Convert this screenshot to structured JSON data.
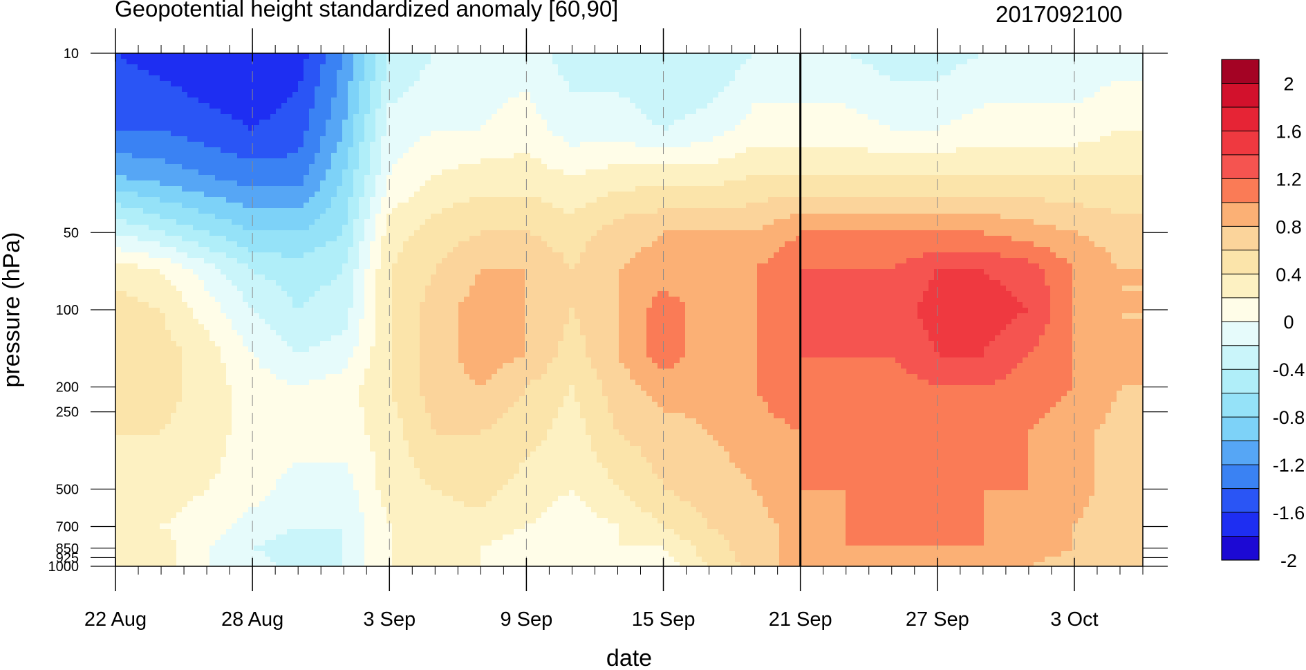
{
  "chart_data": {
    "type": "heatmap",
    "subtype": "filled-contour (time-pressure cross section)",
    "title": "Geopotential height standardized anomaly [60,90]",
    "subtitle": "2017092100",
    "xlabel": "date",
    "ylabel": "pressure (hPa)",
    "x_range": [
      "2017-08-22",
      "2017-10-06"
    ],
    "x_tick_labels": [
      "22 Aug",
      "28 Aug",
      "3 Sep",
      "9 Sep",
      "15 Sep",
      "21 Sep",
      "27 Sep",
      "3 Oct"
    ],
    "x_tick_dates": [
      "2017-08-22",
      "2017-08-28",
      "2017-09-03",
      "2017-09-09",
      "2017-09-15",
      "2017-09-21",
      "2017-09-27",
      "2017-10-03"
    ],
    "y_scale": "log",
    "y_range": [
      1000,
      10
    ],
    "y_tick_labels": [
      "10",
      "50",
      "100",
      "200",
      "250",
      "500",
      "700",
      "850",
      "925",
      "1000"
    ],
    "y_tick_values": [
      10,
      50,
      100,
      200,
      250,
      500,
      700,
      850,
      925,
      1000
    ],
    "reference_line_date": "2017-09-21",
    "grid": "dashed vertical lines at labeled dates",
    "colorbar": {
      "placement": "right",
      "labels": [
        "2",
        "1.6",
        "1.2",
        "0.8",
        "0.4",
        "0",
        "-0.4",
        "-0.8",
        "-1.2",
        "-1.6",
        "-2"
      ],
      "levels": [
        -2,
        -1.8,
        -1.6,
        -1.4,
        -1.2,
        -1.0,
        -0.8,
        -0.6,
        -0.4,
        -0.2,
        0,
        0.2,
        0.4,
        0.6,
        0.8,
        1.0,
        1.2,
        1.4,
        1.6,
        1.8,
        2
      ],
      "colors_low_to_high": [
        "#1c09d4",
        "#1e2ef2",
        "#2a55f5",
        "#3a82f3",
        "#56a6f5",
        "#7dd2f8",
        "#95e2f8",
        "#b0eef9",
        "#caf5fa",
        "#e6fbfb",
        "#fffde8",
        "#fdf1c2",
        "#fbe4aa",
        "#fbd49b",
        "#fbb075",
        "#fa7b56",
        "#f55450",
        "#ef3940",
        "#e62435",
        "#d2112c",
        "#a40324"
      ]
    },
    "dates": [
      "08-22",
      "08-24",
      "08-26",
      "08-28",
      "08-30",
      "09-01",
      "09-03",
      "09-05",
      "09-07",
      "09-09",
      "09-11",
      "09-13",
      "09-15",
      "09-17",
      "09-19",
      "09-21",
      "09-23",
      "09-25",
      "09-27",
      "09-29",
      "10-01",
      "10-03",
      "10-05"
    ],
    "pressure_levels": [
      10,
      20,
      30,
      50,
      70,
      100,
      150,
      200,
      300,
      500,
      700,
      850,
      1000
    ],
    "values_by_level": [
      [
        -1.8,
        -1.9,
        -2.0,
        -2.0,
        -1.9,
        -1.4,
        -0.6,
        -0.4,
        -0.3,
        -0.3,
        -0.5,
        -0.5,
        -0.6,
        -0.6,
        -0.4,
        -0.4,
        -0.4,
        -0.5,
        -0.5,
        -0.4,
        -0.4,
        -0.4,
        -0.3
      ],
      [
        -1.6,
        -1.6,
        -1.7,
        -1.8,
        -1.7,
        -1.2,
        -0.3,
        -0.2,
        -0.2,
        -0.1,
        -0.3,
        -0.3,
        -0.4,
        -0.3,
        -0.1,
        -0.1,
        -0.1,
        -0.2,
        -0.2,
        -0.1,
        -0.1,
        -0.1,
        0.0
      ],
      [
        -1.2,
        -1.3,
        -1.4,
        -1.5,
        -1.5,
        -1.0,
        -0.2,
        0.0,
        0.1,
        0.1,
        0.0,
        0.1,
        0.1,
        0.1,
        0.2,
        0.2,
        0.2,
        0.2,
        0.2,
        0.2,
        0.2,
        0.2,
        0.2
      ],
      [
        -0.4,
        -0.6,
        -0.8,
        -1.0,
        -1.0,
        -0.8,
        0.1,
        0.3,
        0.4,
        0.4,
        0.3,
        0.5,
        0.6,
        0.6,
        0.6,
        0.8,
        0.8,
        0.8,
        0.8,
        0.8,
        0.7,
        0.6,
        0.5
      ],
      [
        0.1,
        0.0,
        -0.3,
        -0.6,
        -0.7,
        -0.6,
        0.2,
        0.4,
        0.6,
        0.6,
        0.4,
        0.6,
        0.7,
        0.7,
        0.8,
        1.0,
        1.0,
        1.0,
        1.2,
        1.2,
        1.1,
        0.8,
        0.6
      ],
      [
        0.3,
        0.2,
        -0.1,
        -0.4,
        -0.6,
        -0.5,
        0.2,
        0.5,
        0.7,
        0.6,
        0.4,
        0.6,
        0.9,
        0.7,
        0.8,
        1.0,
        1.0,
        1.1,
        1.3,
        1.3,
        1.2,
        0.8,
        0.6
      ],
      [
        0.3,
        0.3,
        0.1,
        -0.2,
        -0.4,
        -0.3,
        0.2,
        0.5,
        0.7,
        0.6,
        0.3,
        0.6,
        0.9,
        0.7,
        0.8,
        1.0,
        1.0,
        1.0,
        1.2,
        1.2,
        1.0,
        0.8,
        0.6
      ],
      [
        0.3,
        0.3,
        0.1,
        -0.1,
        -0.2,
        -0.1,
        0.2,
        0.5,
        0.6,
        0.4,
        0.2,
        0.5,
        0.7,
        0.7,
        0.8,
        1.0,
        0.8,
        0.9,
        1.0,
        1.0,
        0.9,
        0.8,
        0.6
      ],
      [
        0.2,
        0.2,
        0.1,
        -0.1,
        -0.1,
        -0.1,
        0.1,
        0.4,
        0.4,
        0.3,
        0.1,
        0.4,
        0.5,
        0.6,
        0.7,
        0.8,
        0.8,
        0.9,
        0.9,
        0.9,
        0.8,
        0.7,
        0.5
      ],
      [
        0.0,
        0.1,
        0.0,
        -0.1,
        -0.3,
        -0.3,
        0.1,
        0.2,
        0.3,
        0.1,
        0.0,
        0.2,
        0.4,
        0.5,
        0.6,
        0.8,
        0.8,
        0.8,
        0.9,
        0.8,
        0.8,
        0.7,
        0.5
      ],
      [
        0.1,
        0.0,
        -0.1,
        -0.3,
        -0.4,
        -0.4,
        0.0,
        0.1,
        0.1,
        0.0,
        -0.1,
        0.0,
        0.2,
        0.4,
        0.5,
        0.7,
        0.8,
        0.8,
        0.9,
        0.8,
        0.7,
        0.6,
        0.4
      ],
      [
        0.1,
        0.1,
        -0.2,
        -0.4,
        -0.5,
        -0.4,
        0.0,
        0.0,
        0.0,
        -0.1,
        -0.1,
        0.0,
        0.0,
        0.3,
        0.5,
        0.7,
        0.8,
        0.8,
        0.8,
        0.8,
        0.7,
        0.6,
        0.5
      ],
      [
        0.1,
        0.1,
        -0.2,
        -0.3,
        -0.5,
        -0.4,
        0.0,
        0.0,
        0.0,
        -0.1,
        -0.1,
        0.0,
        -0.1,
        0.2,
        0.5,
        0.7,
        0.6,
        0.6,
        0.7,
        0.7,
        0.6,
        0.5,
        0.4
      ]
    ]
  }
}
